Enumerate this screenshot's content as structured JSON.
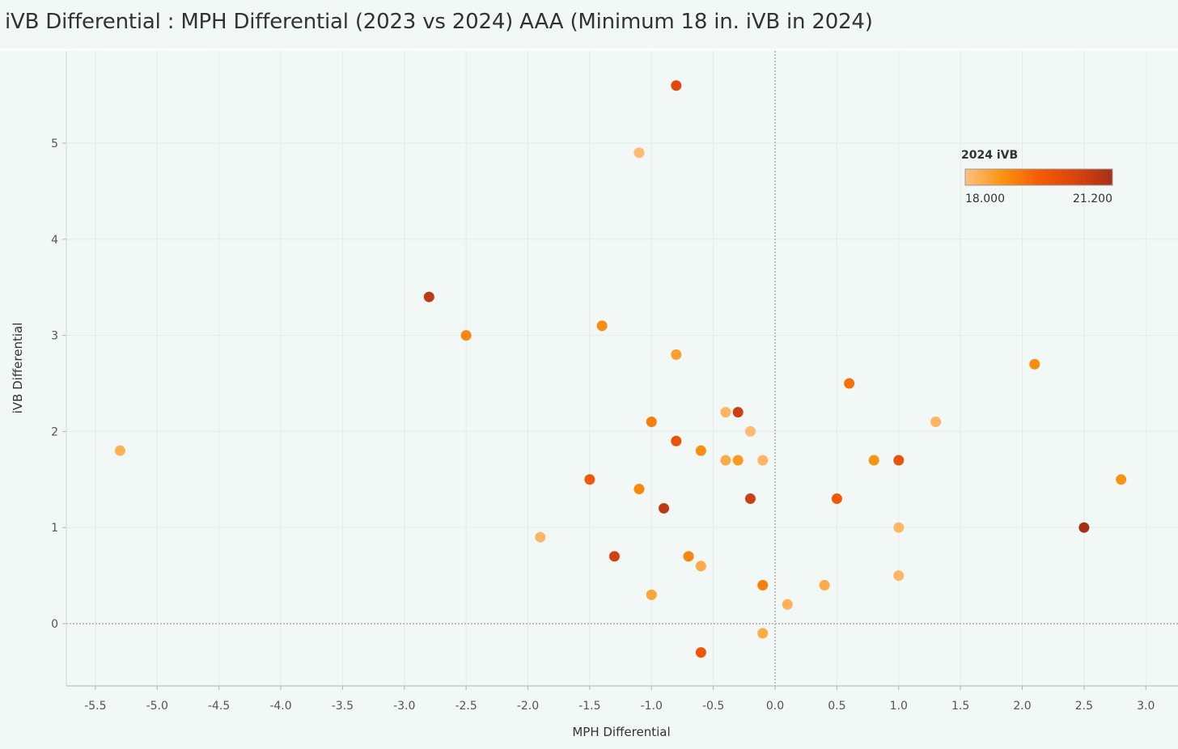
{
  "title": "iVB Differential : MPH Differential (2023 vs 2024) AAA (Minimum 18 in. iVB in 2024)",
  "chart_data": {
    "type": "scatter",
    "xlabel": "MPH Differential",
    "ylabel": "iVB Differential",
    "xlim": [
      -5.75,
      3.25
    ],
    "ylim": [
      -0.6,
      5.85
    ],
    "x_ticks": [
      -5.5,
      -5.0,
      -4.5,
      -4.0,
      -3.5,
      -3.0,
      -2.5,
      -2.0,
      -1.5,
      -1.0,
      -0.5,
      0.0,
      0.5,
      1.0,
      1.5,
      2.0,
      2.5,
      3.0
    ],
    "x_tick_labels": [
      "-5.5",
      "-5.0",
      "-4.5",
      "-4.0",
      "-3.5",
      "-3.0",
      "-2.5",
      "-2.0",
      "-1.5",
      "-1.0",
      "-0.5",
      "0.0",
      "0.5",
      "1.0",
      "1.5",
      "2.0",
      "2.5",
      "3.0"
    ],
    "y_ticks": [
      0,
      1,
      2,
      3,
      4,
      5
    ],
    "y_tick_labels": [
      "0",
      "1",
      "2",
      "3",
      "4",
      "5"
    ],
    "grid": true,
    "reference_lines": {
      "x": 0,
      "y": 0
    },
    "color_legend": {
      "title": "2024 iVB",
      "min_label": "18.000",
      "max_label": "21.200",
      "min": 18.0,
      "max": 21.2,
      "placement": "top-right",
      "colors": [
        "#ffc27f",
        "#fb9312",
        "#f55c05",
        "#d8440e",
        "#a5301a"
      ]
    },
    "points": [
      {
        "x": -0.8,
        "y": 5.6,
        "c": 20.2
      },
      {
        "x": -1.1,
        "y": 4.9,
        "c": 18.1
      },
      {
        "x": -2.8,
        "y": 3.4,
        "c": 20.8
      },
      {
        "x": -2.5,
        "y": 3.0,
        "c": 19.0
      },
      {
        "x": -1.4,
        "y": 3.1,
        "c": 18.9
      },
      {
        "x": -0.8,
        "y": 2.8,
        "c": 18.6
      },
      {
        "x": 0.6,
        "y": 2.5,
        "c": 19.3
      },
      {
        "x": 2.1,
        "y": 2.7,
        "c": 18.9
      },
      {
        "x": -0.4,
        "y": 2.2,
        "c": 18.2
      },
      {
        "x": -0.3,
        "y": 2.2,
        "c": 20.6
      },
      {
        "x": 1.3,
        "y": 2.1,
        "c": 18.2
      },
      {
        "x": -1.0,
        "y": 2.1,
        "c": 19.1
      },
      {
        "x": -0.2,
        "y": 2.0,
        "c": 18.1
      },
      {
        "x": -0.8,
        "y": 1.9,
        "c": 19.9
      },
      {
        "x": -0.6,
        "y": 1.8,
        "c": 18.9
      },
      {
        "x": -5.3,
        "y": 1.8,
        "c": 18.3
      },
      {
        "x": -0.4,
        "y": 1.7,
        "c": 18.4
      },
      {
        "x": -0.3,
        "y": 1.7,
        "c": 18.7
      },
      {
        "x": -0.1,
        "y": 1.7,
        "c": 18.2
      },
      {
        "x": 0.8,
        "y": 1.7,
        "c": 18.8
      },
      {
        "x": 1.0,
        "y": 1.7,
        "c": 19.9
      },
      {
        "x": -1.5,
        "y": 1.5,
        "c": 19.7
      },
      {
        "x": 2.8,
        "y": 1.5,
        "c": 18.8
      },
      {
        "x": -1.1,
        "y": 1.4,
        "c": 19.0
      },
      {
        "x": -0.2,
        "y": 1.3,
        "c": 20.6
      },
      {
        "x": 0.5,
        "y": 1.3,
        "c": 19.7
      },
      {
        "x": -0.9,
        "y": 1.2,
        "c": 20.8
      },
      {
        "x": 1.0,
        "y": 1.0,
        "c": 18.2
      },
      {
        "x": 2.5,
        "y": 1.0,
        "c": 21.2
      },
      {
        "x": -1.9,
        "y": 0.9,
        "c": 18.2
      },
      {
        "x": -1.3,
        "y": 0.7,
        "c": 20.5
      },
      {
        "x": -0.7,
        "y": 0.7,
        "c": 19.0
      },
      {
        "x": -0.6,
        "y": 0.6,
        "c": 18.4
      },
      {
        "x": -0.1,
        "y": 0.4,
        "c": 19.1
      },
      {
        "x": 0.4,
        "y": 0.4,
        "c": 18.4
      },
      {
        "x": 1.0,
        "y": 0.5,
        "c": 18.2
      },
      {
        "x": -1.0,
        "y": 0.3,
        "c": 18.5
      },
      {
        "x": 0.1,
        "y": 0.2,
        "c": 18.3
      },
      {
        "x": -0.1,
        "y": -0.1,
        "c": 18.4
      },
      {
        "x": -0.6,
        "y": -0.3,
        "c": 19.8
      }
    ]
  }
}
